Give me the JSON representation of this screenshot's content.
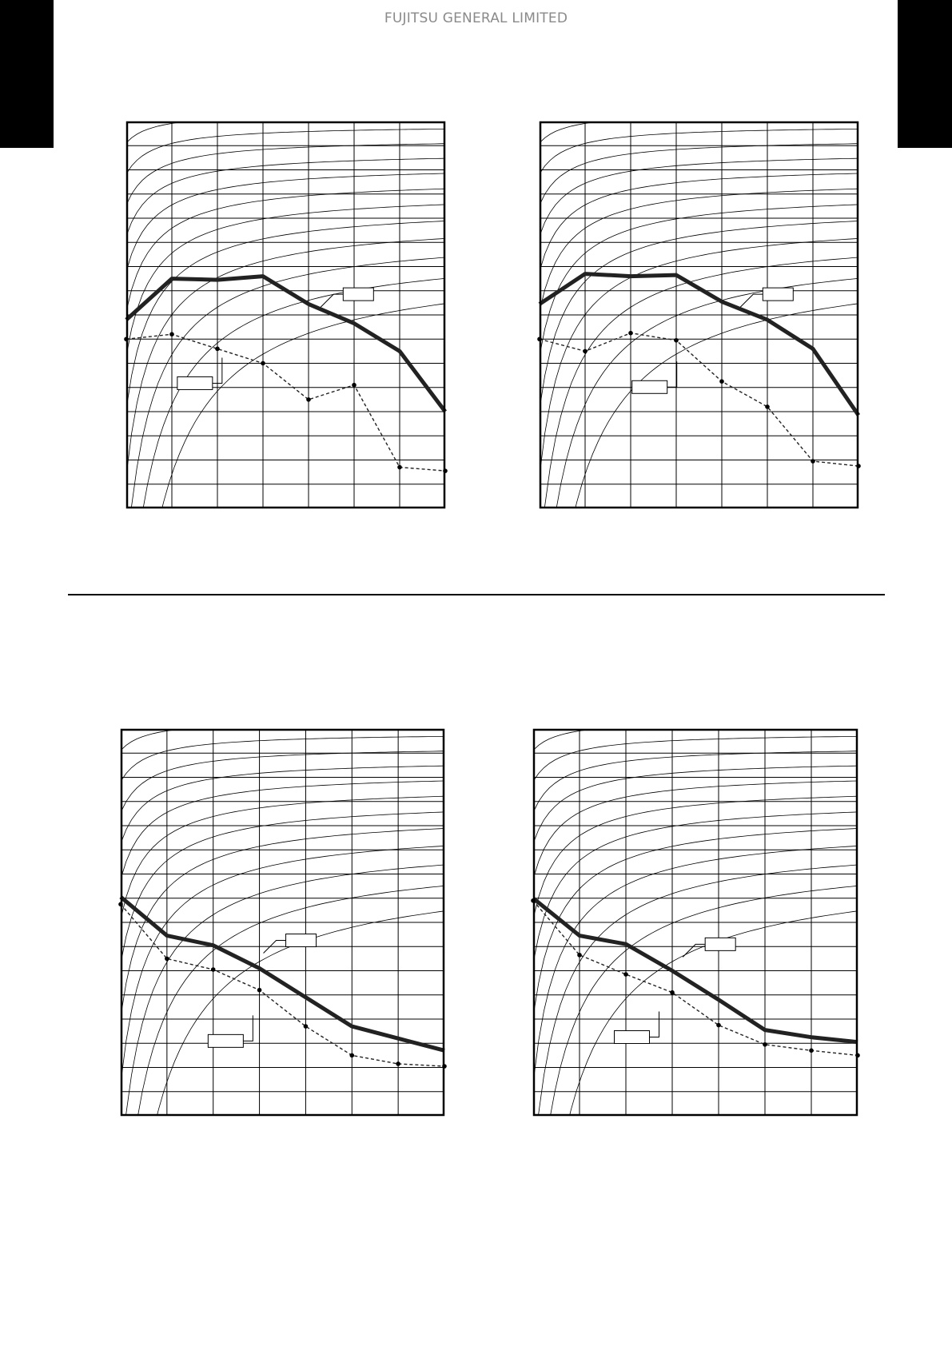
{
  "header": {
    "brand": "FUJITSU GENERAL LIMITED"
  },
  "colors": {
    "main_line": "#222222",
    "grid": "#000000",
    "fan_curve": "#000000",
    "brand_text": "#8a8a8a",
    "corner_block": "#000000"
  },
  "chart_data": [
    {
      "type": "line",
      "title": "",
      "xlabel": "",
      "ylabel": "",
      "grid": true,
      "x_divisions": 7,
      "y_divisions": 16,
      "xlim": [
        0,
        7
      ],
      "ylim": [
        0,
        16
      ],
      "x": [
        0,
        1,
        2,
        3,
        4,
        5,
        6,
        7
      ],
      "series": [
        {
          "style": "solid",
          "values": [
            7.8,
            9.5,
            9.45,
            9.6,
            8.45,
            7.65,
            6.5,
            4.0
          ]
        },
        {
          "style": "dashed",
          "values": [
            7.0,
            7.2,
            6.6,
            6.0,
            4.5,
            5.1,
            1.7,
            1.55
          ]
        }
      ],
      "labels": [
        "",
        ""
      ],
      "has_fan_curves": true
    },
    {
      "type": "line",
      "title": "",
      "xlabel": "",
      "ylabel": "",
      "grid": true,
      "x_divisions": 7,
      "y_divisions": 16,
      "xlim": [
        0,
        7
      ],
      "ylim": [
        0,
        16
      ],
      "x": [
        0,
        1,
        2,
        3,
        4,
        5,
        6,
        7
      ],
      "series": [
        {
          "style": "solid",
          "values": [
            8.45,
            9.7,
            9.6,
            9.65,
            8.55,
            7.8,
            6.6,
            3.85
          ]
        },
        {
          "style": "dashed",
          "values": [
            7.0,
            6.5,
            7.25,
            6.95,
            5.25,
            4.2,
            1.95,
            1.75
          ]
        }
      ],
      "labels": [
        "",
        ""
      ],
      "has_fan_curves": true
    },
    {
      "type": "line",
      "title": "",
      "xlabel": "",
      "ylabel": "",
      "grid": true,
      "x_divisions": 7,
      "y_divisions": 16,
      "xlim": [
        0,
        7
      ],
      "ylim": [
        0,
        16
      ],
      "x": [
        0,
        1,
        2,
        3,
        4,
        5,
        6,
        7
      ],
      "series": [
        {
          "style": "solid",
          "values": [
            9.05,
            7.45,
            7.05,
            6.1,
            4.9,
            3.7,
            3.2,
            2.7
          ]
        },
        {
          "style": "dashed",
          "values": [
            8.75,
            6.5,
            6.05,
            5.2,
            3.7,
            2.5,
            2.15,
            2.05
          ]
        }
      ],
      "labels": [
        "",
        ""
      ],
      "has_fan_curves": true
    },
    {
      "type": "line",
      "title": "",
      "xlabel": "",
      "ylabel": "",
      "grid": true,
      "x_divisions": 7,
      "y_divisions": 16,
      "xlim": [
        0,
        7
      ],
      "ylim": [
        0,
        16
      ],
      "x": [
        0,
        1,
        2,
        3,
        4,
        5,
        6,
        7
      ],
      "series": [
        {
          "style": "solid",
          "values": [
            9.0,
            7.45,
            7.1,
            6.0,
            4.8,
            3.55,
            3.25,
            3.05
          ]
        },
        {
          "style": "dashed",
          "values": [
            8.9,
            6.65,
            5.85,
            5.1,
            3.75,
            2.95,
            2.7,
            2.5
          ]
        }
      ],
      "labels": [
        "",
        ""
      ],
      "has_fan_curves": true
    }
  ]
}
